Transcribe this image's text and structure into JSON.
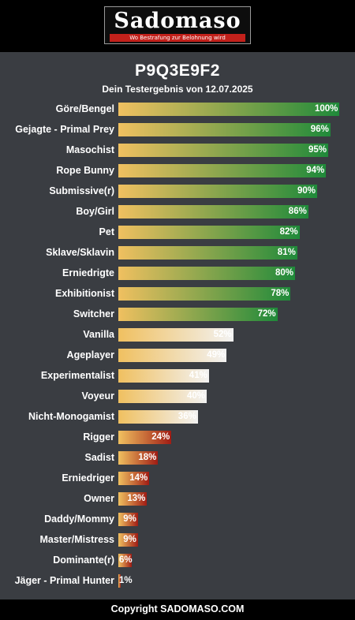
{
  "header": {
    "logo_text": "Sadomaso",
    "logo_tagline": "Wo Bestrafung zur Belohnung wird"
  },
  "title": "P9Q3E9F2",
  "subtitle": "Dein Testergebnis von 12.07.2025",
  "colors": {
    "background": "#3a3d42",
    "gradient_start": "#f0c060",
    "high_end": "#1f8a3a",
    "mid_end": "#f2f2f2",
    "low_end": "#a01c14"
  },
  "chart_data": {
    "type": "bar",
    "orientation": "horizontal",
    "xlim": [
      0,
      100
    ],
    "grid": false,
    "categories": [
      "Göre/Bengel",
      "Gejagte - Primal Prey",
      "Masochist",
      "Rope Bunny",
      "Submissive(r)",
      "Boy/Girl",
      "Pet",
      "Sklave/Sklavin",
      "Erniedrigte",
      "Exhibitionist",
      "Switcher",
      "Vanilla",
      "Ageplayer",
      "Experimentalist",
      "Voyeur",
      "Nicht-Monogamist",
      "Rigger",
      "Sadist",
      "Erniedriger",
      "Owner",
      "Daddy/Mommy",
      "Master/Mistress",
      "Dominante(r)",
      "Jäger - Primal Hunter"
    ],
    "values": [
      100,
      96,
      95,
      94,
      90,
      86,
      82,
      81,
      80,
      78,
      72,
      52,
      49,
      41,
      40,
      36,
      24,
      18,
      14,
      13,
      9,
      9,
      6,
      1
    ],
    "value_labels": [
      "100%",
      "96%",
      "95%",
      "94%",
      "90%",
      "86%",
      "82%",
      "81%",
      "80%",
      "78%",
      "72%",
      "52%",
      "49%",
      "41%",
      "40%",
      "36%",
      "24%",
      "18%",
      "14%",
      "13%",
      "9%",
      "9%",
      "6%",
      "1%"
    ]
  },
  "footer": {
    "text": "Copyright SADOMASO.COM"
  }
}
